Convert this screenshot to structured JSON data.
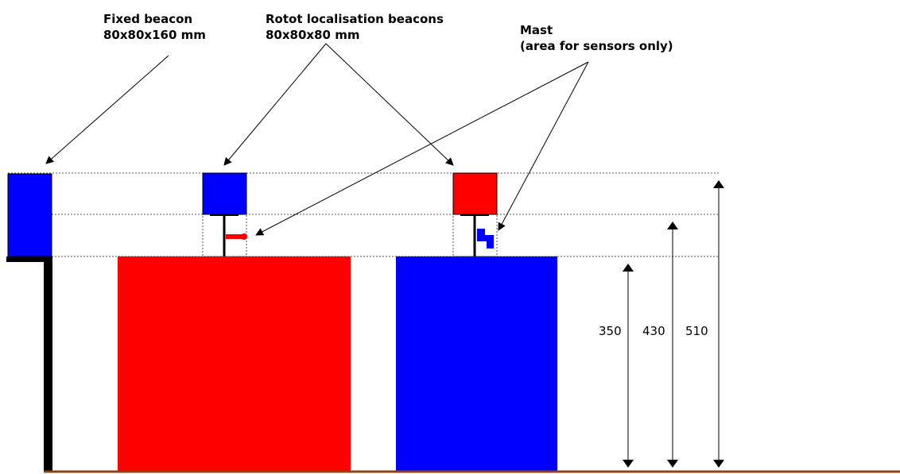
{
  "labels": {
    "fixed_beacon": {
      "line1": "Fixed beacon",
      "line2": "80x80x160 mm"
    },
    "robot_beacons": {
      "line1": "Rotot localisation beacons",
      "line2": "80x80x80 mm"
    },
    "mast": {
      "line1": "Mast",
      "line2": "(area for sensors only)"
    }
  },
  "dimensions": {
    "d350": "350",
    "d430": "430",
    "d510": "510"
  },
  "colors": {
    "red": "#ff0000",
    "blue": "#0000ff",
    "black": "#000000",
    "ground": "#8b4513",
    "dotted": "#555555"
  }
}
